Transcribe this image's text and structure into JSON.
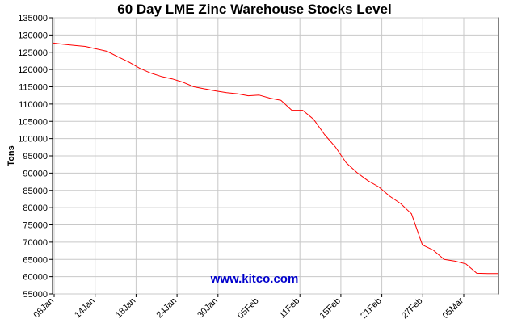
{
  "chart_data": {
    "type": "line",
    "title": "60 Day LME Zinc Warehouse Stocks Level",
    "ylabel": "Tons",
    "xlabel": "",
    "watermark": "www.kitco.com",
    "ylim": [
      55000,
      135000
    ],
    "yticks": [
      55000,
      60000,
      65000,
      70000,
      75000,
      80000,
      85000,
      90000,
      95000,
      100000,
      105000,
      110000,
      115000,
      120000,
      125000,
      130000,
      135000
    ],
    "xtick_labels": [
      "08Jan",
      "14Jan",
      "18Jan",
      "24Jan",
      "30Jan",
      "05Feb",
      "11Feb",
      "15Feb",
      "21Feb",
      "27Feb",
      "05Mar"
    ],
    "grid": true,
    "series": [
      {
        "color": "#ff0000",
        "values": [
          127700,
          127300,
          127000,
          126700,
          126000,
          125300,
          123700,
          122200,
          120400,
          119000,
          118000,
          117300,
          116300,
          115000,
          114400,
          113800,
          113300,
          113000,
          112400,
          112600,
          111700,
          111100,
          108200,
          108200,
          105600,
          101200,
          97600,
          93000,
          90100,
          87800,
          86000,
          83300,
          81200,
          78200,
          69200,
          67700,
          65000,
          64500,
          63700,
          61000,
          60900,
          60900
        ]
      }
    ]
  }
}
